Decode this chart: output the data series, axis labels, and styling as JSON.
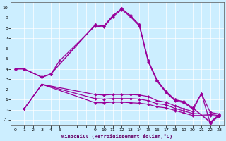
{
  "xlabel": "Windchill (Refroidissement éolien,°C)",
  "bg_color": "#cceeff",
  "line_color": "#990099",
  "xlim": [
    -0.5,
    23.5
  ],
  "ylim": [
    -1.5,
    10.5
  ],
  "xtick_positions": [
    0,
    1,
    2,
    3,
    4,
    5,
    6,
    7,
    8,
    9,
    10,
    11,
    12,
    13,
    14,
    15,
    16,
    17,
    18,
    19,
    20,
    21,
    22,
    23
  ],
  "xtick_labels": [
    "0",
    "1",
    "2",
    "3",
    "4",
    "5",
    "",
    "",
    "",
    "9",
    "10",
    "11",
    "12",
    "13",
    "14",
    "15",
    "16",
    "17",
    "18",
    "19",
    "20",
    "21",
    "22",
    "23"
  ],
  "yticks": [
    -1,
    0,
    1,
    2,
    3,
    4,
    5,
    6,
    7,
    8,
    9,
    10
  ],
  "series": [
    {
      "x": [
        0,
        1,
        3,
        4,
        9,
        10,
        11,
        12,
        13,
        14,
        15,
        16,
        17,
        18,
        19,
        20,
        22,
        23
      ],
      "y": [
        4,
        4,
        3.2,
        3.5,
        8.3,
        8.2,
        9.2,
        9.9,
        9.2,
        8.3,
        4.8,
        2.9,
        1.8,
        1.0,
        0.8,
        0.2,
        -1.2,
        -0.5
      ],
      "marker": "D",
      "markersize": 2.5,
      "linewidth": 1.1
    },
    {
      "x": [
        1,
        3,
        4,
        5,
        9,
        10,
        11,
        12,
        13,
        14,
        15,
        16,
        17,
        18,
        19,
        20,
        21,
        22,
        23
      ],
      "y": [
        4,
        3.2,
        3.5,
        4.8,
        8.2,
        8.1,
        9.1,
        9.8,
        9.1,
        8.2,
        4.7,
        2.8,
        1.7,
        0.9,
        0.7,
        0.1,
        1.6,
        -1.3,
        -0.6
      ],
      "marker": "D",
      "markersize": 2.0,
      "linewidth": 0.9
    },
    {
      "x": [
        1,
        3,
        9,
        10,
        11,
        12,
        13,
        14,
        15,
        16,
        17,
        18,
        19,
        20,
        21,
        22,
        23
      ],
      "y": [
        0.1,
        2.5,
        1.5,
        1.45,
        1.5,
        1.5,
        1.5,
        1.45,
        1.3,
        0.9,
        0.75,
        0.4,
        0.1,
        -0.15,
        1.6,
        -0.25,
        -0.4
      ],
      "marker": "D",
      "markersize": 2.0,
      "linewidth": 0.9
    },
    {
      "x": [
        1,
        3,
        9,
        10,
        11,
        12,
        13,
        14,
        15,
        16,
        17,
        18,
        19,
        20,
        22,
        23
      ],
      "y": [
        0.1,
        2.5,
        1.1,
        1.05,
        1.1,
        1.1,
        1.1,
        1.05,
        0.9,
        0.6,
        0.5,
        0.15,
        -0.1,
        -0.35,
        -0.45,
        -0.55
      ],
      "marker": "D",
      "markersize": 2.0,
      "linewidth": 0.9
    },
    {
      "x": [
        1,
        3,
        9,
        10,
        11,
        12,
        13,
        14,
        15,
        16,
        17,
        18,
        19,
        20,
        22,
        23
      ],
      "y": [
        0.1,
        2.5,
        0.7,
        0.7,
        0.75,
        0.75,
        0.7,
        0.65,
        0.55,
        0.3,
        0.2,
        -0.05,
        -0.3,
        -0.55,
        -0.55,
        -0.65
      ],
      "marker": "D",
      "markersize": 2.0,
      "linewidth": 0.9
    }
  ]
}
